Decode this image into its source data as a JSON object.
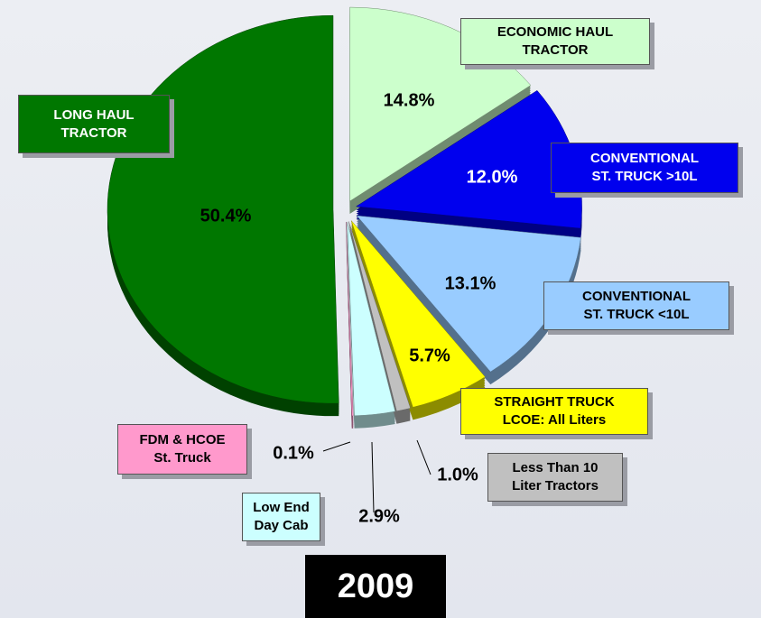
{
  "chart_data": {
    "type": "pie",
    "title": "2009",
    "categories": [
      "ECONOMIC HAUL\nTRACTOR",
      "CONVENTIONAL\nST. TRUCK >10L",
      "CONVENTIONAL\nST. TRUCK <10L",
      "STRAIGHT TRUCK\nLCOE:  All Liters",
      "Less Than 10\nLiter Tractors",
      "Low End\nDay Cab",
      "FDM & HCOE\nSt. Truck",
      "LONG HAUL\nTRACTOR"
    ],
    "values": [
      14.8,
      12.0,
      13.1,
      5.7,
      1.0,
      2.9,
      0.1,
      50.4
    ],
    "value_labels": [
      "14.8%",
      "12.0%",
      "13.1%",
      "5.7%",
      "1.0%",
      "2.9%",
      "0.1%",
      "50.4%"
    ],
    "colors": [
      "#ccffcc",
      "#0000ee",
      "#99ccff",
      "#ffff00",
      "#c0c0c0",
      "#ccffff",
      "#ff99cc",
      "#007700"
    ]
  }
}
